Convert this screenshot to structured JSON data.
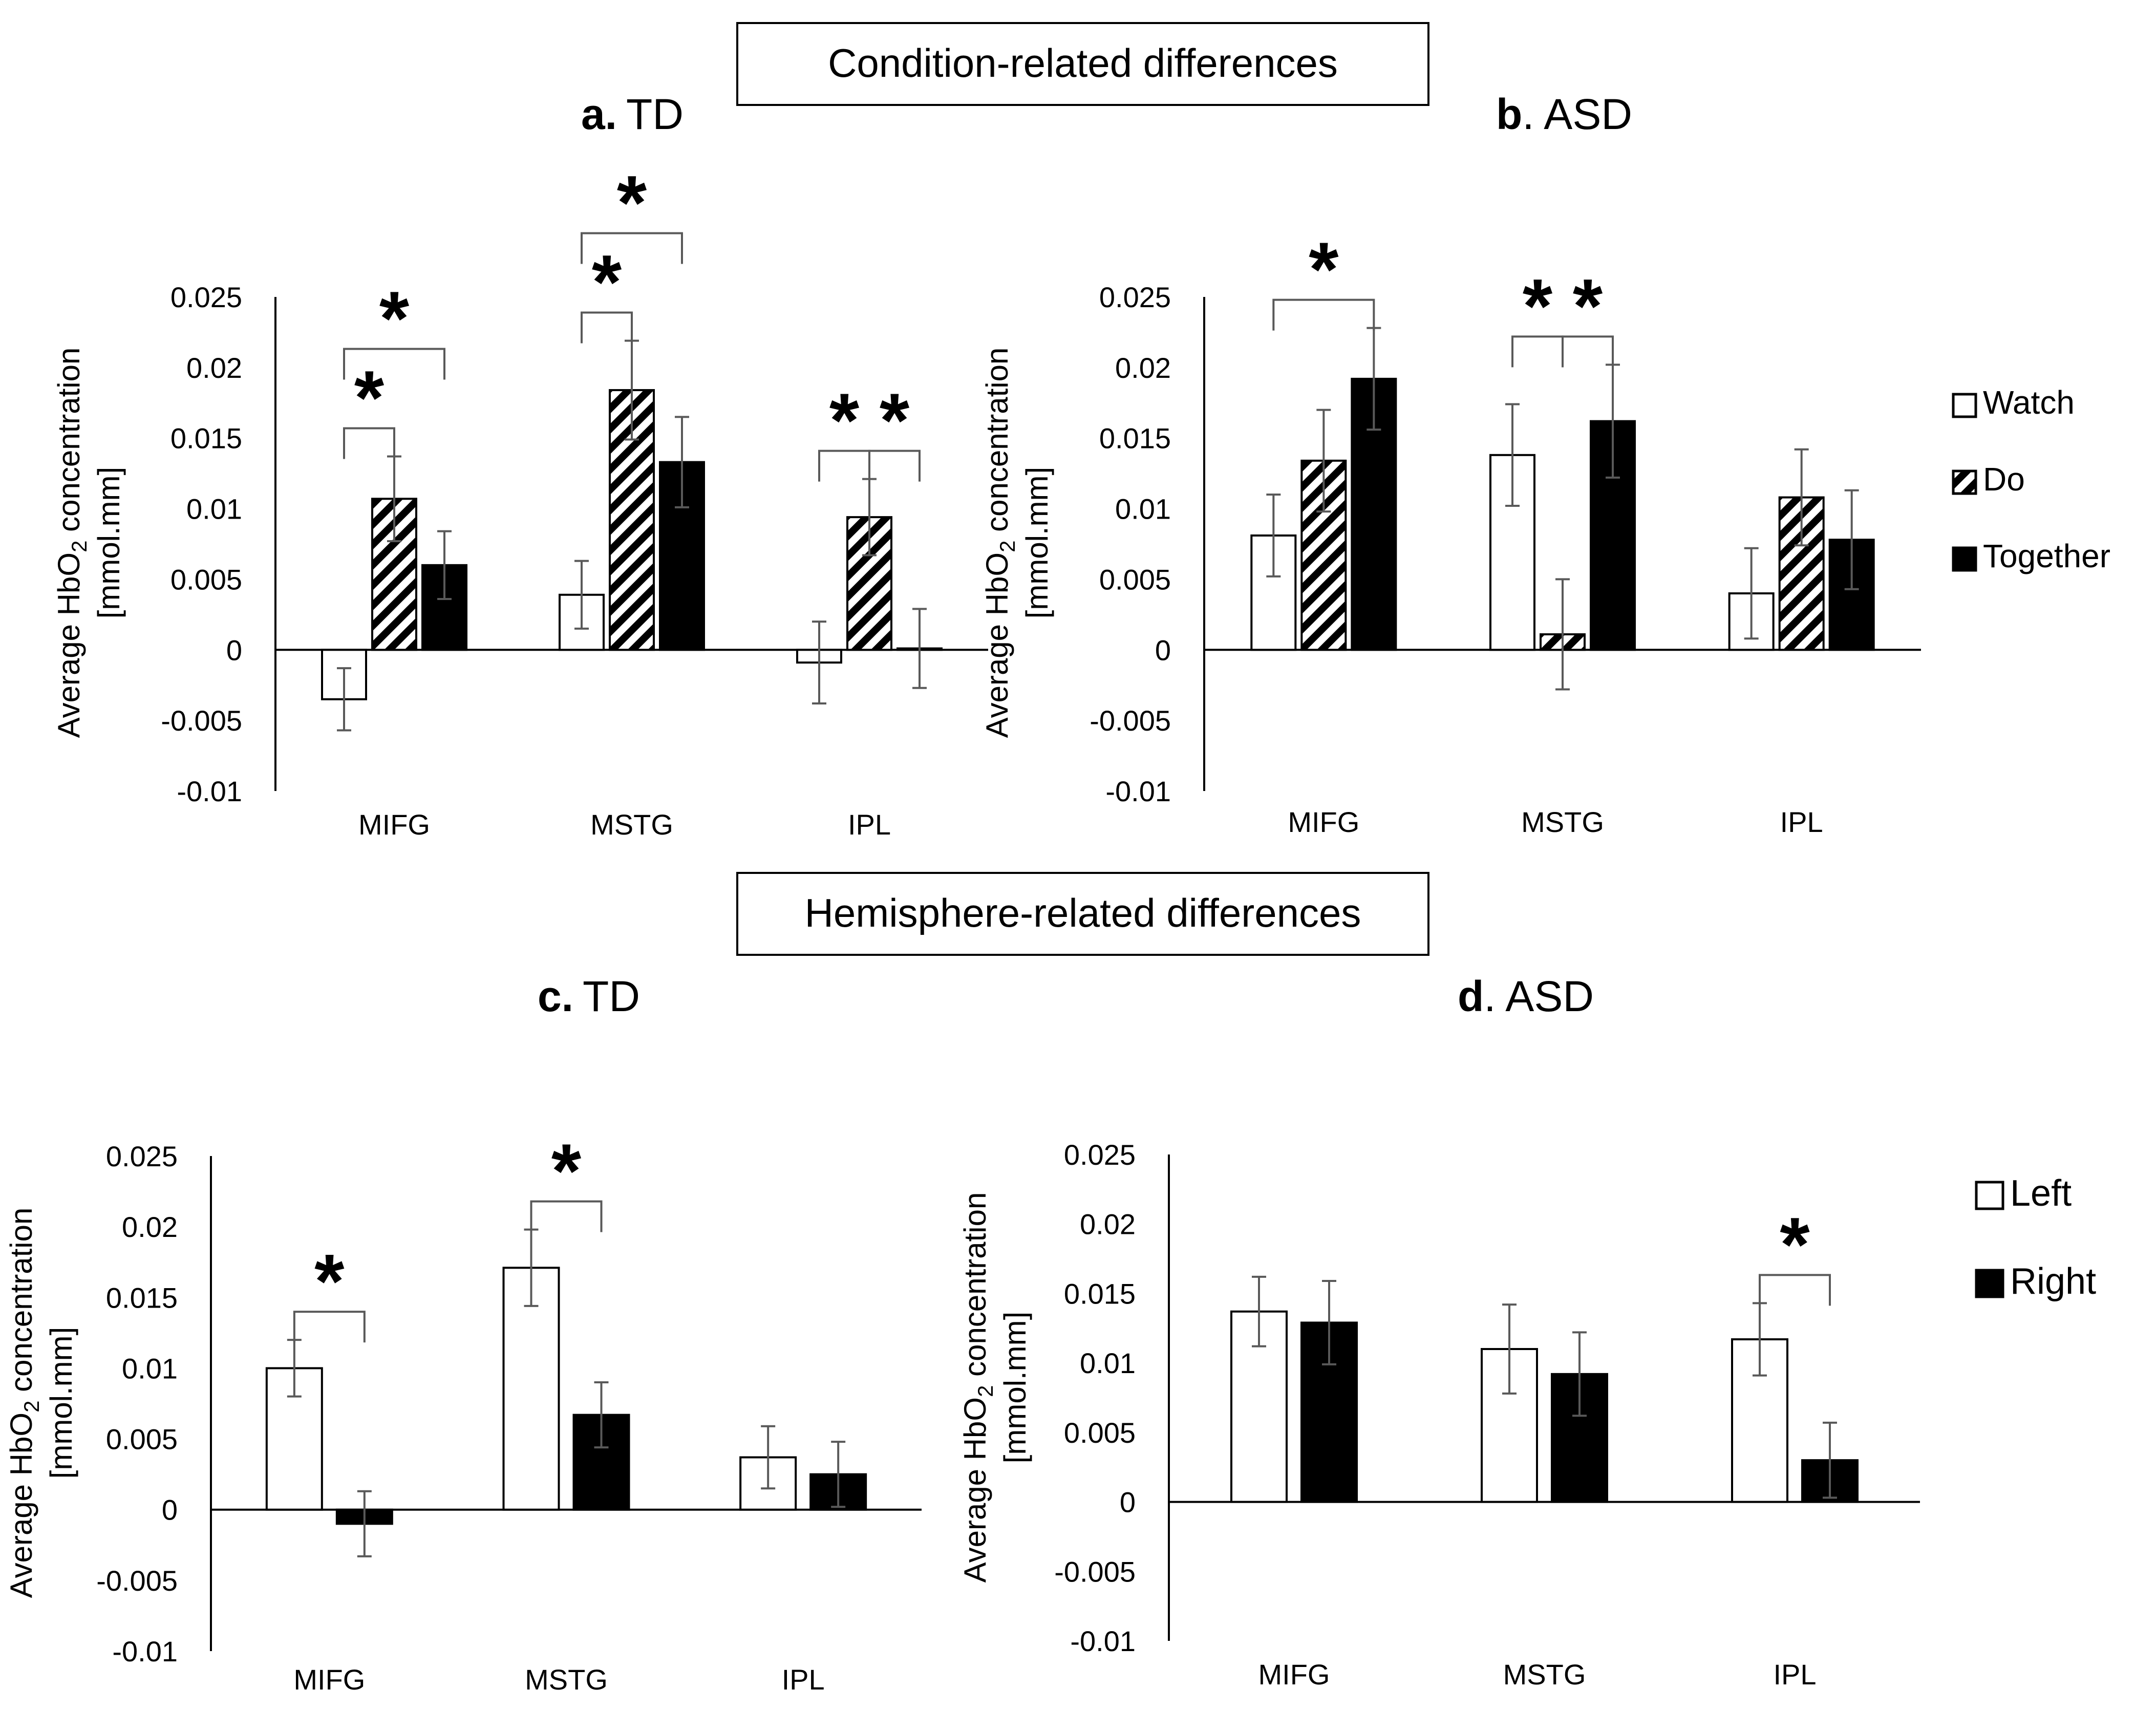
{
  "sections": [
    {
      "title": "Condition-related differences"
    },
    {
      "title": "Hemisphere-related differences"
    }
  ],
  "colors": {
    "bar_fill_dark": "#000000",
    "bar_fill_light": "#ffffff",
    "error_bar": "#595959",
    "axis": "#000000"
  },
  "chart_data": [
    {
      "type": "bar",
      "panel_letter": "a.",
      "title": "TD",
      "ylabel_line1": "Average HbO",
      "ylabel_sub": "2",
      "ylabel_line1_end": " concentration",
      "ylabel_line2": "[mmol.mm]",
      "ylim": [
        -0.01,
        0.025
      ],
      "yticks": [
        "0.025",
        "0.02",
        "0.015",
        "0.01",
        "0.005",
        "0",
        "-0.005",
        "-0.01"
      ],
      "categories": [
        "MIFG",
        "MSTG",
        "IPL"
      ],
      "series": [
        {
          "name": "Watch",
          "fill": "white",
          "values": [
            -0.0035,
            0.0039,
            -0.0009
          ],
          "err": [
            0.0022,
            0.0024,
            0.0029
          ]
        },
        {
          "name": "Do",
          "fill": "hatch",
          "values": [
            0.0107,
            0.0184,
            0.0094
          ],
          "err": [
            0.003,
            0.0035,
            0.0027
          ]
        },
        {
          "name": "Together",
          "fill": "black",
          "values": [
            0.006,
            0.0133,
            0.0001
          ],
          "err": [
            0.0024,
            0.0032,
            0.0028
          ]
        }
      ],
      "significance": [
        {
          "category": 0,
          "from": 0,
          "to": 1,
          "level": 1,
          "label": "*"
        },
        {
          "category": 0,
          "from": 0,
          "to": 2,
          "level": 2,
          "label": "*"
        },
        {
          "category": 1,
          "from": 0,
          "to": 1,
          "level": 1,
          "label": "*"
        },
        {
          "category": 1,
          "from": 0,
          "to": 2,
          "level": 2,
          "label": "*"
        },
        {
          "category": 2,
          "from": 0,
          "to": 1,
          "level": 1,
          "label": "*"
        },
        {
          "category": 2,
          "from": 1,
          "to": 2,
          "level": 1,
          "label": "*"
        }
      ]
    },
    {
      "type": "bar",
      "panel_letter": "b",
      "title": ". ASD",
      "ylabel_line1": "Average HbO",
      "ylabel_sub": "2",
      "ylabel_line1_end": " concentration",
      "ylabel_line2": "[mmol.mm]",
      "ylim": [
        -0.01,
        0.025
      ],
      "yticks": [
        "0.025",
        "0.02",
        "0.015",
        "0.01",
        "0.005",
        "0",
        "-0.005",
        "-0.01"
      ],
      "categories": [
        "MIFG",
        "MSTG",
        "IPL"
      ],
      "legend": [
        "Watch",
        "Do",
        "Together"
      ],
      "series": [
        {
          "name": "Watch",
          "fill": "white",
          "values": [
            0.0081,
            0.0138,
            0.004
          ],
          "err": [
            0.0029,
            0.0036,
            0.0032
          ]
        },
        {
          "name": "Do",
          "fill": "hatch",
          "values": [
            0.0134,
            0.0011,
            0.0108
          ],
          "err": [
            0.0036,
            0.0039,
            0.0034
          ]
        },
        {
          "name": "Together",
          "fill": "black",
          "values": [
            0.0192,
            0.0162,
            0.0078
          ],
          "err": [
            0.0036,
            0.004,
            0.0035
          ]
        }
      ],
      "significance": [
        {
          "category": 0,
          "from": 0,
          "to": 2,
          "level": 1,
          "label": "*"
        },
        {
          "category": 1,
          "from": 0,
          "to": 1,
          "level": 1,
          "label": "*"
        },
        {
          "category": 1,
          "from": 1,
          "to": 2,
          "level": 1,
          "label": "*"
        }
      ]
    },
    {
      "type": "bar",
      "panel_letter": "c.",
      "title": "TD",
      "ylabel_line1": "Average HbO",
      "ylabel_sub": "2",
      "ylabel_line1_end": " concentration",
      "ylabel_line2": "[mmol.mm]",
      "ylim": [
        -0.01,
        0.025
      ],
      "yticks": [
        "0.025",
        "0.02",
        "0.015",
        "0.01",
        "0.005",
        "0",
        "-0.005",
        "-0.01"
      ],
      "categories": [
        "MIFG",
        "MSTG",
        "IPL"
      ],
      "series": [
        {
          "name": "Left",
          "fill": "white",
          "values": [
            0.01,
            0.0171,
            0.0037
          ],
          "err": [
            0.002,
            0.0027,
            0.0022
          ]
        },
        {
          "name": "Right",
          "fill": "black",
          "values": [
            -0.001,
            0.0067,
            0.0025
          ],
          "err": [
            0.0023,
            0.0023,
            0.0023
          ]
        }
      ],
      "significance": [
        {
          "category": 0,
          "from": 0,
          "to": 1,
          "level": 1,
          "label": "*"
        },
        {
          "category": 1,
          "from": 0,
          "to": 1,
          "level": 1,
          "label": "*"
        }
      ]
    },
    {
      "type": "bar",
      "panel_letter": "d",
      "title": ". ASD",
      "ylabel_line1": "Average HbO",
      "ylabel_sub": "2",
      "ylabel_line1_end": " concentration",
      "ylabel_line2": "[mmol.mm]",
      "ylim": [
        -0.01,
        0.025
      ],
      "yticks": [
        "0.025",
        "0.02",
        "0.015",
        "0.01",
        "0.005",
        "0",
        "-0.005",
        "-0.01"
      ],
      "categories": [
        "MIFG",
        "MSTG",
        "IPL"
      ],
      "legend": [
        "Left",
        "Right"
      ],
      "series": [
        {
          "name": "Left",
          "fill": "white",
          "values": [
            0.0137,
            0.011,
            0.0117
          ],
          "err": [
            0.0025,
            0.0032,
            0.0026
          ]
        },
        {
          "name": "Right",
          "fill": "black",
          "values": [
            0.0129,
            0.0092,
            0.003
          ],
          "err": [
            0.003,
            0.003,
            0.0027
          ]
        }
      ],
      "significance": [
        {
          "category": 2,
          "from": 0,
          "to": 1,
          "level": 1,
          "label": "*"
        }
      ]
    }
  ]
}
